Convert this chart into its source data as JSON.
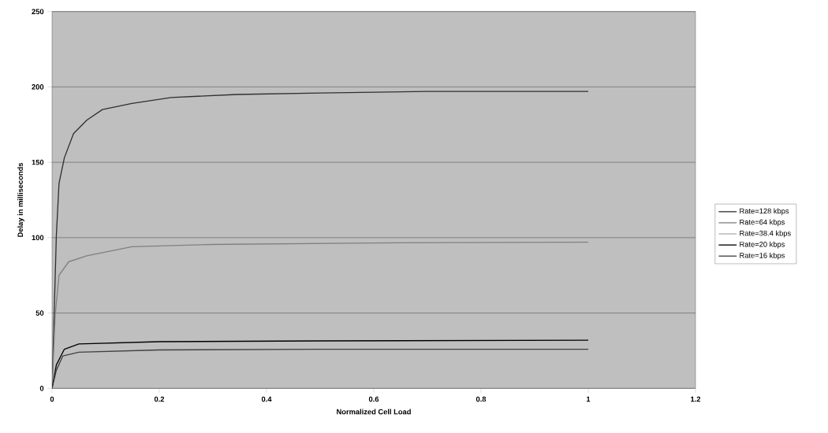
{
  "chart_data": {
    "type": "line",
    "xlabel": "Normalized Cell Load",
    "ylabel": "Delay in milliseconds",
    "xlim": [
      0,
      1.2
    ],
    "xticks": [
      0,
      0.2,
      0.4,
      0.6,
      0.8,
      1,
      1.2
    ],
    "ylim": [
      0,
      250
    ],
    "yticks": [
      0,
      50,
      100,
      150,
      200,
      250
    ],
    "grid": "y",
    "legend": "right",
    "marker": "none",
    "line_style": "solid",
    "series": [
      {
        "name": "Rate=128 kbps",
        "color": "#303030",
        "x": [
          0,
          0.004,
          0.008,
          0.013,
          0.023,
          0.04,
          0.065,
          0.094,
          0.149,
          0.222,
          0.345,
          0.5,
          0.7,
          1
        ],
        "values": [
          0,
          50,
          101,
          136,
          153,
          169,
          178,
          185,
          189,
          193,
          195,
          196,
          197,
          197
        ]
      },
      {
        "name": "Rate=64 kbps",
        "color": "#808080",
        "x": [
          0,
          0.003,
          0.006,
          0.013,
          0.031,
          0.065,
          0.149,
          0.3,
          0.6,
          1
        ],
        "values": [
          0,
          25,
          49,
          75,
          84,
          88,
          94,
          95.5,
          96.5,
          97
        ]
      },
      {
        "name": "Rate=38.4 kbps",
        "color": "#b0b0b0"
      },
      {
        "name": "Rate=20 kbps",
        "color": "#000000",
        "x": [
          0,
          0.008,
          0.023,
          0.05,
          0.2,
          0.5,
          1
        ],
        "values": [
          0,
          15.5,
          26,
          29.5,
          31,
          31.5,
          32
        ]
      },
      {
        "name": "Rate=16 kbps",
        "color": "#404040",
        "x": [
          0,
          0.008,
          0.02,
          0.05,
          0.2,
          0.5,
          1
        ],
        "values": [
          0,
          12,
          21.5,
          24,
          25.5,
          26,
          26
        ]
      }
    ]
  }
}
